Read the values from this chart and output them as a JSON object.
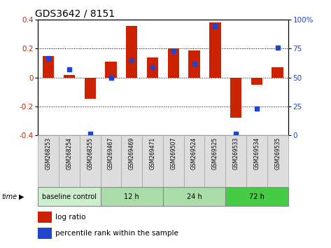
{
  "title": "GDS3642 / 8151",
  "samples": [
    "GSM268253",
    "GSM268254",
    "GSM268255",
    "GSM269467",
    "GSM269469",
    "GSM269471",
    "GSM269507",
    "GSM269524",
    "GSM269525",
    "GSM269533",
    "GSM269534",
    "GSM269535"
  ],
  "log_ratio": [
    0.15,
    0.02,
    -0.15,
    0.11,
    0.36,
    0.14,
    0.2,
    0.19,
    0.38,
    -0.28,
    -0.05,
    0.07
  ],
  "percentile": [
    67,
    57,
    1,
    50,
    65,
    59,
    73,
    62,
    95,
    1,
    23,
    76
  ],
  "groups": [
    {
      "label": "baseline control",
      "start": 0,
      "end": 3,
      "color": "#cceecc"
    },
    {
      "label": "12 h",
      "start": 3,
      "end": 6,
      "color": "#aaddaa"
    },
    {
      "label": "24 h",
      "start": 6,
      "end": 9,
      "color": "#aaddaa"
    },
    {
      "label": "72 h",
      "start": 9,
      "end": 12,
      "color": "#44cc44"
    }
  ],
  "bar_color": "#cc2200",
  "dot_color": "#2244cc",
  "ylim": [
    -0.4,
    0.4
  ],
  "y2lim": [
    0,
    100
  ],
  "yticks": [
    -0.4,
    -0.2,
    0.0,
    0.2,
    0.4
  ],
  "y2ticks": [
    0,
    25,
    50,
    75,
    100
  ],
  "dotted_lines": [
    -0.2,
    0.0,
    0.2
  ],
  "bar_width": 0.55,
  "sample_box_color": "#dddddd",
  "sample_box_edge": "#aaaaaa"
}
